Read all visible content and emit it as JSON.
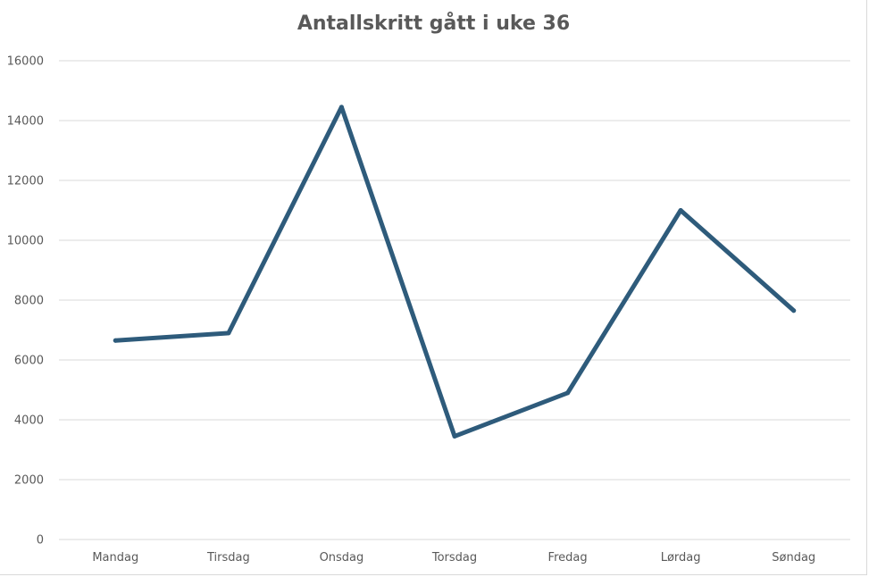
{
  "chart_data": {
    "type": "line",
    "title": "Antallskritt gått i uke 36",
    "xlabel": "",
    "ylabel": "",
    "categories": [
      "Mandag",
      "Tirsdag",
      "Onsdag",
      "Torsdag",
      "Fredag",
      "Lørdag",
      "Søndag"
    ],
    "series": [
      {
        "values": [
          6650,
          6900,
          14450,
          3450,
          4900,
          11000,
          7650
        ],
        "color": "#2e5b7b"
      }
    ],
    "ylim": [
      0,
      16000
    ],
    "yticks": [
      0,
      2000,
      4000,
      6000,
      8000,
      10000,
      12000,
      14000,
      16000
    ],
    "grid": true,
    "legend": "none"
  }
}
